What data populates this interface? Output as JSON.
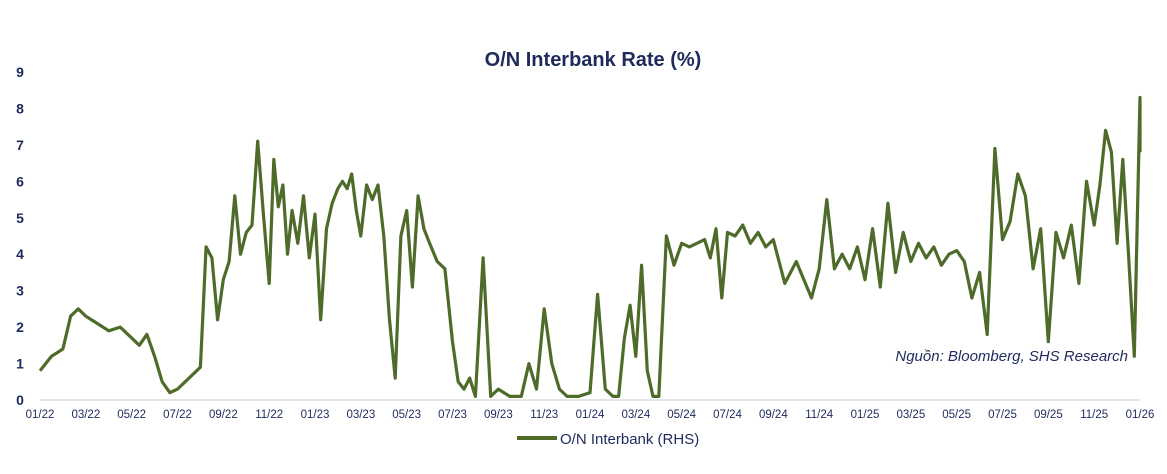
{
  "chart_data": {
    "type": "line",
    "title": "O/N Interbank Rate (%)",
    "xlabel": "",
    "ylabel": "",
    "ylim": [
      0,
      9
    ],
    "yticks": [
      "0",
      "1",
      "2",
      "3",
      "4",
      "5",
      "6",
      "7",
      "8",
      "9"
    ],
    "xticks": [
      "01/22",
      "03/22",
      "05/22",
      "07/22",
      "09/22",
      "11/22",
      "01/23",
      "03/23",
      "05/23",
      "07/23",
      "09/23",
      "11/23",
      "01/24",
      "03/24",
      "05/24",
      "07/24",
      "09/24",
      "11/24",
      "01/25",
      "03/25",
      "05/25",
      "07/25",
      "09/25",
      "11/25",
      "01/26"
    ],
    "grid": false,
    "legend": "bottom",
    "source_note": "Nguồn:  Bloomberg, SHS Research",
    "colors": {
      "series": "#4e6b2a",
      "text": "#1f2a5c"
    },
    "series": [
      {
        "name": "O/N Interbank (RHS)",
        "points": [
          [
            "01/22",
            0.8
          ],
          [
            "01/22",
            1.2
          ],
          [
            "02/22",
            1.4
          ],
          [
            "02/22",
            2.3
          ],
          [
            "02/22",
            2.5
          ],
          [
            "03/22",
            2.3
          ],
          [
            "03/22",
            2.1
          ],
          [
            "04/22",
            1.9
          ],
          [
            "04/22",
            2.0
          ],
          [
            "05/22",
            1.7
          ],
          [
            "05/22",
            1.5
          ],
          [
            "05/22",
            1.8
          ],
          [
            "06/22",
            1.2
          ],
          [
            "06/22",
            0.5
          ],
          [
            "06/22",
            0.2
          ],
          [
            "07/22",
            0.3
          ],
          [
            "07/22",
            0.6
          ],
          [
            "08/22",
            0.9
          ],
          [
            "08/22",
            4.2
          ],
          [
            "08/22",
            3.9
          ],
          [
            "08/22",
            2.2
          ],
          [
            "09/22",
            3.3
          ],
          [
            "09/22",
            3.8
          ],
          [
            "09/22",
            5.6
          ],
          [
            "09/22",
            4.0
          ],
          [
            "10/22",
            4.6
          ],
          [
            "10/22",
            4.8
          ],
          [
            "10/22",
            7.1
          ],
          [
            "10/22",
            5.1
          ],
          [
            "11/22",
            3.2
          ],
          [
            "11/22",
            6.6
          ],
          [
            "11/22",
            5.3
          ],
          [
            "11/22",
            5.9
          ],
          [
            "11/22",
            4.0
          ],
          [
            "12/22",
            5.2
          ],
          [
            "12/22",
            4.3
          ],
          [
            "12/22",
            5.6
          ],
          [
            "12/22",
            3.9
          ],
          [
            "01/23",
            5.1
          ],
          [
            "01/23",
            2.2
          ],
          [
            "01/23",
            4.7
          ],
          [
            "01/23",
            5.4
          ],
          [
            "02/23",
            5.8
          ],
          [
            "02/23",
            6.0
          ],
          [
            "02/23",
            5.8
          ],
          [
            "02/23",
            6.2
          ],
          [
            "02/23",
            5.2
          ],
          [
            "03/23",
            4.5
          ],
          [
            "03/23",
            5.9
          ],
          [
            "03/23",
            5.5
          ],
          [
            "03/23",
            5.9
          ],
          [
            "04/23",
            4.5
          ],
          [
            "04/23",
            2.2
          ],
          [
            "04/23",
            0.6
          ],
          [
            "04/23",
            4.5
          ],
          [
            "05/23",
            5.2
          ],
          [
            "05/23",
            3.1
          ],
          [
            "05/23",
            5.6
          ],
          [
            "05/23",
            4.7
          ],
          [
            "06/23",
            4.3
          ],
          [
            "06/23",
            3.8
          ],
          [
            "06/23",
            3.6
          ],
          [
            "07/23",
            1.6
          ],
          [
            "07/23",
            0.5
          ],
          [
            "07/23",
            0.3
          ],
          [
            "07/23",
            0.6
          ],
          [
            "08/23",
            0.1
          ],
          [
            "08/23",
            3.9
          ],
          [
            "08/23",
            0.1
          ],
          [
            "09/23",
            0.3
          ],
          [
            "09/23",
            0.1
          ],
          [
            "10/23",
            0.1
          ],
          [
            "10/23",
            1.0
          ],
          [
            "10/23",
            0.3
          ],
          [
            "11/23",
            2.5
          ],
          [
            "11/23",
            1.0
          ],
          [
            "11/23",
            0.3
          ],
          [
            "12/23",
            0.1
          ],
          [
            "12/23",
            0.1
          ],
          [
            "01/24",
            0.2
          ],
          [
            "01/24",
            2.9
          ],
          [
            "01/24",
            0.3
          ],
          [
            "02/24",
            0.1
          ],
          [
            "02/24",
            0.1
          ],
          [
            "02/24",
            1.7
          ],
          [
            "02/24",
            2.6
          ],
          [
            "03/24",
            1.2
          ],
          [
            "03/24",
            3.7
          ],
          [
            "03/24",
            0.8
          ],
          [
            "03/24",
            0.1
          ],
          [
            "04/24",
            0.1
          ],
          [
            "04/24",
            4.5
          ],
          [
            "04/24",
            3.7
          ],
          [
            "05/24",
            4.3
          ],
          [
            "05/24",
            4.2
          ],
          [
            "05/24",
            4.3
          ],
          [
            "06/24",
            4.4
          ],
          [
            "06/24",
            3.9
          ],
          [
            "06/24",
            4.7
          ],
          [
            "06/24",
            2.8
          ],
          [
            "07/24",
            4.6
          ],
          [
            "07/24",
            4.5
          ],
          [
            "07/24",
            4.8
          ],
          [
            "08/24",
            4.3
          ],
          [
            "08/24",
            4.6
          ],
          [
            "08/24",
            4.2
          ],
          [
            "09/24",
            4.4
          ],
          [
            "09/24",
            3.2
          ],
          [
            "10/24",
            3.8
          ],
          [
            "10/24",
            3.3
          ],
          [
            "10/24",
            2.8
          ],
          [
            "11/24",
            3.6
          ],
          [
            "11/24",
            5.5
          ],
          [
            "11/24",
            3.6
          ],
          [
            "12/24",
            4.0
          ],
          [
            "12/24",
            3.6
          ],
          [
            "12/24",
            4.2
          ],
          [
            "01/25",
            3.3
          ],
          [
            "01/25",
            4.7
          ],
          [
            "01/25",
            3.1
          ],
          [
            "02/25",
            5.4
          ],
          [
            "02/25",
            3.5
          ],
          [
            "02/25",
            4.6
          ],
          [
            "03/25",
            3.8
          ],
          [
            "03/25",
            4.3
          ],
          [
            "03/25",
            3.9
          ],
          [
            "04/25",
            4.2
          ],
          [
            "04/25",
            3.7
          ],
          [
            "04/25",
            4.0
          ],
          [
            "05/25",
            4.1
          ],
          [
            "05/25",
            3.8
          ],
          [
            "05/25",
            2.8
          ],
          [
            "06/25",
            3.5
          ],
          [
            "06/25",
            1.8
          ],
          [
            "06/25",
            6.9
          ],
          [
            "07/25",
            4.4
          ],
          [
            "07/25",
            4.9
          ],
          [
            "07/25",
            6.2
          ],
          [
            "08/25",
            5.6
          ],
          [
            "08/25",
            3.6
          ],
          [
            "08/25",
            4.7
          ],
          [
            "09/25",
            1.6
          ],
          [
            "09/25",
            4.6
          ],
          [
            "09/25",
            3.9
          ],
          [
            "10/25",
            4.8
          ],
          [
            "10/25",
            3.2
          ],
          [
            "10/25",
            6.0
          ],
          [
            "11/25",
            4.8
          ],
          [
            "11/25",
            5.9
          ],
          [
            "11/25",
            7.4
          ],
          [
            "11/25",
            6.8
          ],
          [
            "12/25",
            4.3
          ],
          [
            "12/25",
            6.6
          ],
          [
            "12/25",
            4.0
          ],
          [
            "12/25",
            1.2
          ],
          [
            "01/26",
            8.3
          ],
          [
            "01/26",
            6.8
          ]
        ]
      }
    ]
  }
}
